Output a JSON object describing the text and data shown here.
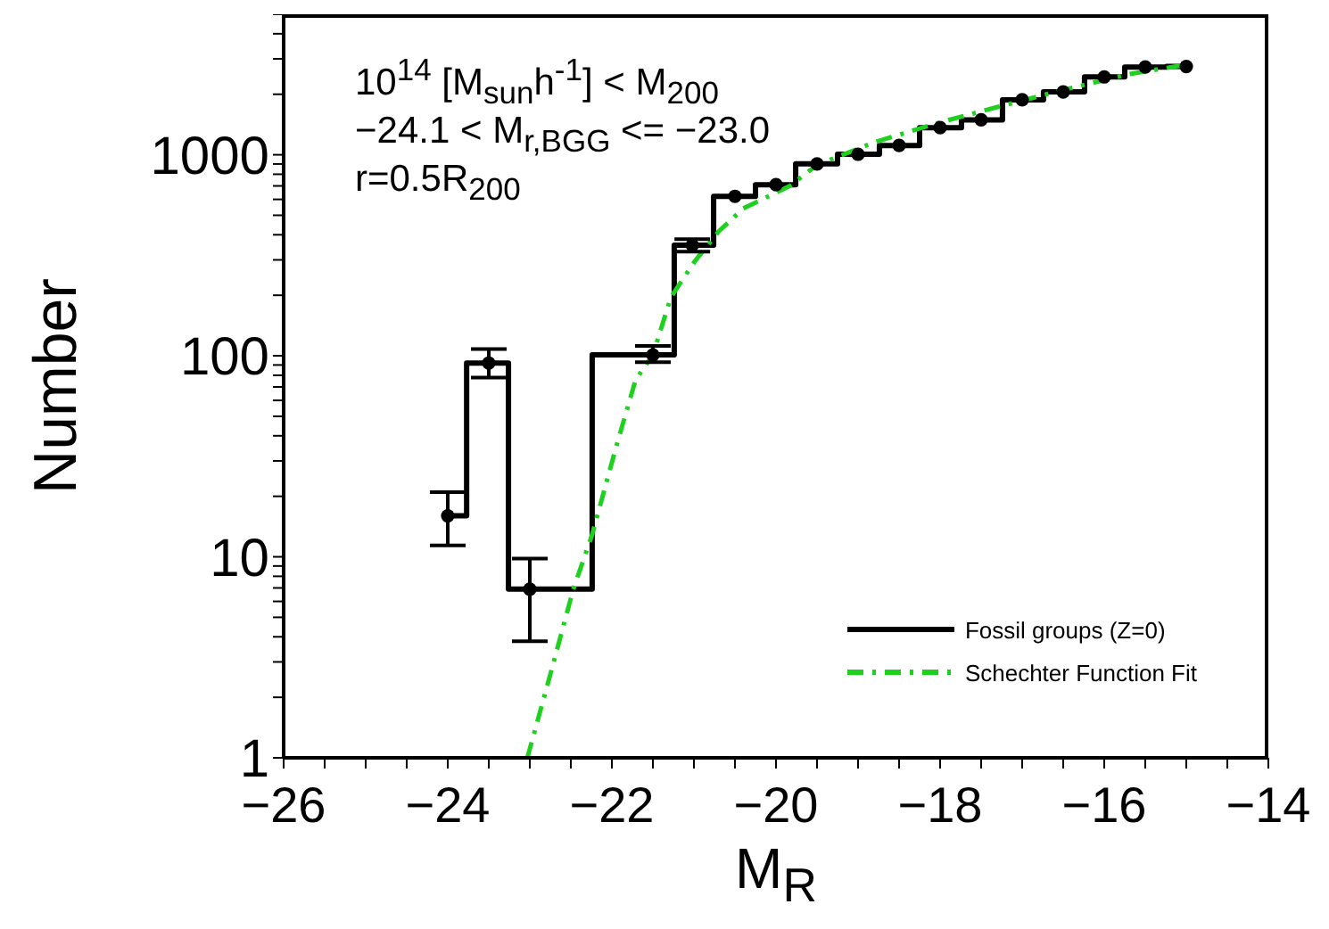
{
  "chart_data": {
    "type": "step",
    "xlabel": "M$_{R}$",
    "ylabel": "Number",
    "annotations": [
      "10$^{14}$  [M$_{sun}$h$^{-1}$] < M$_{200}$",
      "−24.1 < M$_{r,BGG}$ <= −23.0",
      "r=0.5R$_{200}$"
    ],
    "log": "y",
    "legend": "bottom right",
    "xlim": [
      -26,
      -14
    ],
    "xticks": [
      -26,
      {
        "value": -25.5,
        "label": null
      },
      {
        "value": -25,
        "label": null
      },
      {
        "value": -24.5,
        "label": null
      },
      -24,
      {
        "value": -23.5,
        "label": null
      },
      {
        "value": -23,
        "label": null
      },
      {
        "value": -22.5,
        "label": null
      },
      -22,
      {
        "value": -21.5,
        "label": null
      },
      {
        "value": -21,
        "label": null
      },
      {
        "value": -20.5,
        "label": null
      },
      -20,
      {
        "value": -19.5,
        "label": null
      },
      {
        "value": -19,
        "label": null
      },
      {
        "value": -18.5,
        "label": null
      },
      -18,
      {
        "value": -17.5,
        "label": null
      },
      {
        "value": -17,
        "label": null
      },
      {
        "value": -16.5,
        "label": null
      },
      -16,
      {
        "value": -15.5,
        "label": null
      },
      {
        "value": -15,
        "label": null
      },
      {
        "value": -14.5,
        "label": null
      },
      -14
    ],
    "ylim": [
      1,
      5000
    ],
    "yticks": [
      1,
      {
        "value": 2,
        "label": null
      },
      {
        "value": 3,
        "label": null
      },
      {
        "value": 4,
        "label": null
      },
      {
        "value": 5,
        "label": null
      },
      {
        "value": 6,
        "label": null
      },
      {
        "value": 7,
        "label": null
      },
      {
        "value": 8,
        "label": null
      },
      {
        "value": 9,
        "label": null
      },
      10,
      {
        "value": 20,
        "label": null
      },
      {
        "value": 30,
        "label": null
      },
      {
        "value": 40,
        "label": null
      },
      {
        "value": 50,
        "label": null
      },
      {
        "value": 60,
        "label": null
      },
      {
        "value": 70,
        "label": null
      },
      {
        "value": 80,
        "label": null
      },
      {
        "value": 90,
        "label": null
      },
      100,
      {
        "value": 200,
        "label": null
      },
      {
        "value": 300,
        "label": null
      },
      {
        "value": 400,
        "label": null
      },
      {
        "value": 500,
        "label": null
      },
      {
        "value": 600,
        "label": null
      },
      {
        "value": 700,
        "label": null
      },
      {
        "value": 800,
        "label": null
      },
      {
        "value": 900,
        "label": null
      },
      1000,
      {
        "value": 2000,
        "label": null
      },
      {
        "value": 3000,
        "label": null
      },
      {
        "value": 4000,
        "label": null
      },
      {
        "value": 5000,
        "label": null
      }
    ],
    "series": [
      {
        "name": "Fossil groups (Z=0)",
        "color": "#000000",
        "line_style": "solid",
        "marker": "none",
        "x": [
          -24,
          -23.77,
          -23.26,
          -22.24,
          -21.24,
          -20.76,
          -20.25,
          -19.76,
          -19.25,
          -18.74,
          -18.25,
          -17.74,
          -17.24,
          -16.74,
          -16.24,
          -15.75,
          -15.24,
          -15
        ],
        "values": [
          16,
          92,
          6.9,
          101,
          355,
          621,
          710,
          901,
          1006,
          1112,
          1365,
          1492,
          1878,
          2054,
          2440,
          2733,
          2750,
          2750
        ]
      },
      {
        "type": "line",
        "name": "Schechter Function Fit",
        "color": "#1fd11f",
        "line_style": "dashed",
        "marker": "none",
        "x": [
          -23.03,
          -22.75,
          -22.47,
          -22.24,
          -21.95,
          -21.71,
          -21.5,
          -21.28,
          -20.99,
          -20.7,
          -20.4,
          -19.83,
          -19.5,
          -18.81,
          -18,
          -17.29,
          -16.5,
          -15.7,
          -15.04
        ],
        "values": [
          1,
          2.6,
          6.9,
          12.9,
          35,
          76,
          101,
          196,
          295,
          415,
          540,
          700,
          890,
          1151,
          1450,
          1733,
          2100,
          2518,
          2790
        ]
      },
      {
        "type": "scatter",
        "color": "#000000",
        "marker": "circle",
        "x": [
          -24,
          -23.5,
          -23,
          -21.5,
          -21.02,
          -20.5,
          -20,
          -19.5,
          -19,
          -18.5,
          -18,
          -17.5,
          -17,
          -16.5,
          -16,
          -15.5,
          -15
        ],
        "values": [
          16,
          92,
          6.9,
          101,
          355,
          621,
          710,
          901,
          1006,
          1112,
          1365,
          1492,
          1878,
          2054,
          2440,
          2733,
          2750
        ],
        "errors": [
          [
            11.4,
            21
          ],
          [
            78,
            108
          ],
          [
            3.8,
            9.8
          ],
          [
            93,
            112
          ],
          [
            330,
            380
          ],
          null,
          null,
          null,
          null,
          null,
          null,
          null,
          null,
          null,
          null,
          null,
          null
        ]
      }
    ]
  }
}
